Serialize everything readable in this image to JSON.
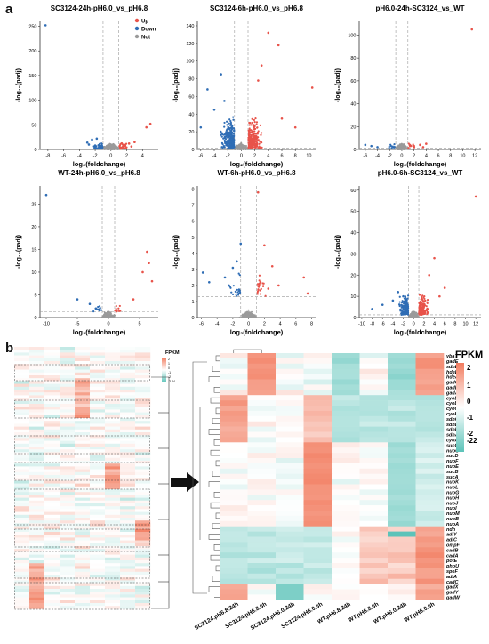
{
  "panel_labels": {
    "a": "a",
    "b": "b"
  },
  "chart_data": [
    {
      "type": "scatter",
      "title": "SC3124-24h-pH6.0_vs_pH6.8",
      "xlabel": "log₂(foldchange)",
      "ylabel": "-log₁₀(padj)",
      "xticks": [
        "-8",
        "-6",
        "-4",
        "-2",
        "0",
        "2",
        "4"
      ],
      "yticks": [
        "0",
        "50",
        "100",
        "150",
        "200",
        "250"
      ],
      "xlim": [
        -9,
        6
      ],
      "ylim": [
        0,
        260
      ],
      "legend": [
        "Up",
        "Down",
        "Not"
      ],
      "thresholds": {
        "x": [
          -1,
          1
        ],
        "y": 1.3
      },
      "points_up": [
        [
          1.8,
          8
        ],
        [
          2.3,
          12
        ],
        [
          3,
          15
        ],
        [
          4.5,
          45
        ],
        [
          5,
          52
        ],
        [
          1.5,
          4
        ],
        [
          2.6,
          6
        ]
      ],
      "points_down": [
        [
          -1.8,
          22
        ],
        [
          -2.4,
          20
        ],
        [
          -3,
          14
        ],
        [
          -2,
          8
        ],
        [
          -1.5,
          5
        ],
        [
          -2.8,
          10
        ]
      ],
      "points_outlier": [
        [
          -8.3,
          252
        ]
      ]
    },
    {
      "type": "scatter",
      "title": "SC3124-6h-pH6.0_vs_pH6.8",
      "xlabel": "log₂(foldchange)",
      "ylabel": "-log₁₀(padj)",
      "xticks": [
        "-6",
        "-4",
        "-2",
        "0",
        "2",
        "4",
        "6",
        "8",
        "10"
      ],
      "yticks": [
        "0",
        "20",
        "40",
        "60",
        "80",
        "100",
        "120",
        "140"
      ],
      "xlim": [
        -6.5,
        11
      ],
      "ylim": [
        0,
        145
      ],
      "thresholds": {
        "x": [
          -1,
          1
        ],
        "y": 1.3
      },
      "points_up": [
        [
          4,
          132
        ],
        [
          5.5,
          118
        ],
        [
          3,
          95
        ],
        [
          10.5,
          70
        ],
        [
          2.5,
          78
        ],
        [
          6,
          35
        ],
        [
          8,
          25
        ]
      ],
      "points_down": [
        [
          -3,
          85
        ],
        [
          -5,
          68
        ],
        [
          -6,
          25
        ],
        [
          -4,
          45
        ],
        [
          -2.5,
          55
        ]
      ]
    },
    {
      "type": "scatter",
      "title": "pH6.0-24h-SC3124_vs_WT",
      "xlabel": "log₂(foldchange)",
      "ylabel": "-log₁₀(padj)",
      "xticks": [
        "-6",
        "-4",
        "-2",
        "0",
        "2",
        "4",
        "6",
        "8",
        "10",
        "12"
      ],
      "yticks": [
        "0",
        "20",
        "40",
        "60",
        "80",
        "100"
      ],
      "xlim": [
        -7,
        13
      ],
      "ylim": [
        0,
        112
      ],
      "thresholds": {
        "x": [
          -1,
          1
        ],
        "y": 1.3
      },
      "points_up": [
        [
          11.5,
          105
        ],
        [
          2,
          3
        ],
        [
          3,
          4
        ],
        [
          4,
          5
        ],
        [
          3.5,
          2
        ]
      ],
      "points_down": [
        [
          -6,
          4
        ],
        [
          -5,
          3
        ],
        [
          -4,
          2
        ]
      ]
    },
    {
      "type": "scatter",
      "title": "WT-24h-pH6.0_vs_pH6.8",
      "xlabel": "log₂(foldchange)",
      "ylabel": "-log₁₀(padj)",
      "xticks": [
        "-10",
        "-5",
        "0",
        "5"
      ],
      "yticks": [
        "0",
        "5",
        "10",
        "15",
        "20",
        "25"
      ],
      "xlim": [
        -11,
        8
      ],
      "ylim": [
        0,
        29
      ],
      "thresholds": {
        "x": [
          -1,
          1
        ],
        "y": 1.3
      },
      "points_up": [
        [
          6.2,
          14.5
        ],
        [
          5.5,
          10
        ],
        [
          7,
          8
        ],
        [
          6.5,
          12
        ],
        [
          4,
          4
        ]
      ],
      "points_down": [
        [
          -10,
          27
        ],
        [
          -5,
          4
        ],
        [
          -3,
          3
        ],
        [
          -2,
          2
        ],
        [
          -1.5,
          1.8
        ]
      ]
    },
    {
      "type": "scatter",
      "title": "WT-6h-pH6.0_vs_pH6.8",
      "xlabel": "log₂(foldchange)",
      "ylabel": "-log₁₀(padj)",
      "xticks": [
        "-6",
        "-4",
        "-2",
        "0",
        "2",
        "4",
        "6",
        "8"
      ],
      "yticks": [
        "0",
        "1",
        "2",
        "3",
        "4",
        "5",
        "6",
        "7",
        "8"
      ],
      "xlim": [
        -6.5,
        8.5
      ],
      "ylim": [
        0,
        8.2
      ],
      "thresholds": {
        "x": [
          -1,
          1
        ],
        "y": 1.3
      },
      "points_up": [
        [
          1.2,
          7.8
        ],
        [
          2,
          4.5
        ],
        [
          3,
          3.2
        ],
        [
          7,
          2.5
        ],
        [
          2.5,
          1.8
        ],
        [
          1.5,
          2.2
        ],
        [
          3.8,
          2
        ],
        [
          7.5,
          1.5
        ]
      ],
      "points_down": [
        [
          -1,
          4.6
        ],
        [
          -1.5,
          3.5
        ],
        [
          -2,
          3.1
        ],
        [
          -3,
          2.5
        ],
        [
          -5,
          2.2
        ],
        [
          -5.8,
          2.8
        ],
        [
          -2.5,
          2
        ]
      ]
    },
    {
      "type": "scatter",
      "title": "pH6.0-6h-SC3124_vs_WT",
      "xlabel": "log₂(foldchange)",
      "ylabel": "-log₁₀(padj)",
      "xticks": [
        "-10",
        "-8",
        "-6",
        "-4",
        "-2",
        "0",
        "2",
        "4",
        "6",
        "8",
        "10",
        "12"
      ],
      "yticks": [
        "0",
        "10",
        "20",
        "30",
        "40",
        "50",
        "60"
      ],
      "xlim": [
        -10.5,
        13
      ],
      "ylim": [
        0,
        62
      ],
      "thresholds": {
        "x": [
          -1,
          1
        ],
        "y": 1.3
      },
      "points_up": [
        [
          12,
          57
        ],
        [
          4,
          28
        ],
        [
          6,
          14
        ],
        [
          3,
          20
        ],
        [
          5,
          10
        ]
      ],
      "points_down": [
        [
          -2,
          10
        ],
        [
          -4,
          8
        ],
        [
          -6,
          6
        ],
        [
          -8,
          4
        ],
        [
          -3,
          12
        ]
      ]
    },
    {
      "type": "heatmap",
      "title": "FPKM",
      "colorbar_ticks": [
        "2",
        "1",
        "0",
        "-1",
        "-2",
        "-22"
      ],
      "columns": [
        "SC3124.pH6.8.24h",
        "SC3124.pH6.8.6h",
        "SC3124.pH6.0.24h",
        "SC3124.pH6.0.6h",
        "WT.pH6.8.24h",
        "WT.pH6.8.6h",
        "WT.pH6.0.24h",
        "WT.pH6.0.6h"
      ],
      "rows": [
        "ybaT",
        "gadE",
        "sdhE",
        "hdeD",
        "hdeA",
        "gadC",
        "gadB",
        "gadA",
        "cyoB",
        "cyoD",
        "cyoC",
        "cyoE",
        "sdhC",
        "sdhB",
        "sdhD",
        "sdhA",
        "cyoA",
        "sucC",
        "nuoC",
        "sucD",
        "nuoF",
        "nuoE",
        "sucB",
        "sucA",
        "nuoK",
        "nuoL",
        "nuoG",
        "nuoH",
        "nuoJ",
        "nuoI",
        "nuoM",
        "nuoB",
        "nuoA",
        "ndh",
        "adiY",
        "adiC",
        "ompF",
        "cadB",
        "cadA",
        "potE",
        "phoU",
        "speF",
        "adiA",
        "cadC",
        "gadX",
        "gadY",
        "gadW"
      ],
      "mini_colorbar_ticks": [
        "2",
        "1",
        "0",
        "-1",
        "-2",
        "-2.44"
      ]
    }
  ],
  "mini_heatmap": {
    "title": "FPKM"
  },
  "colors": {
    "up": "#e8534a",
    "down": "#2f6db5",
    "not": "#9a9a9a",
    "high": "#f27c5f",
    "low": "#5cc3b9"
  }
}
